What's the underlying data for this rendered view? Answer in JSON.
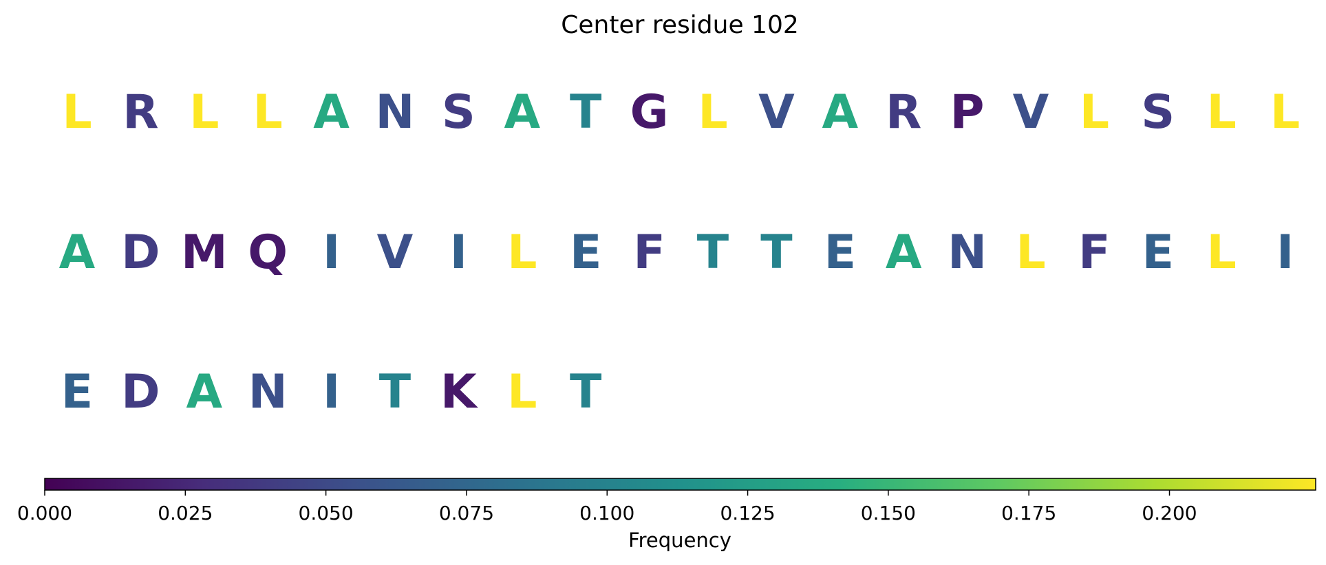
{
  "chart_data": {
    "type": "heatmap",
    "title": "Center residue 102",
    "residues": [
      {
        "letter": "L",
        "freq": 0.226
      },
      {
        "letter": "R",
        "freq": 0.04
      },
      {
        "letter": "L",
        "freq": 0.226
      },
      {
        "letter": "L",
        "freq": 0.226
      },
      {
        "letter": "A",
        "freq": 0.136
      },
      {
        "letter": "N",
        "freq": 0.055
      },
      {
        "letter": "S",
        "freq": 0.04
      },
      {
        "letter": "A",
        "freq": 0.136
      },
      {
        "letter": "T",
        "freq": 0.1
      },
      {
        "letter": "G",
        "freq": 0.015
      },
      {
        "letter": "L",
        "freq": 0.226
      },
      {
        "letter": "V",
        "freq": 0.055
      },
      {
        "letter": "A",
        "freq": 0.136
      },
      {
        "letter": "R",
        "freq": 0.04
      },
      {
        "letter": "P",
        "freq": 0.015
      },
      {
        "letter": "V",
        "freq": 0.055
      },
      {
        "letter": "L",
        "freq": 0.226
      },
      {
        "letter": "S",
        "freq": 0.04
      },
      {
        "letter": "L",
        "freq": 0.226
      },
      {
        "letter": "L",
        "freq": 0.226
      },
      {
        "letter": "A",
        "freq": 0.136
      },
      {
        "letter": "D",
        "freq": 0.04
      },
      {
        "letter": "M",
        "freq": 0.015
      },
      {
        "letter": "Q",
        "freq": 0.015
      },
      {
        "letter": "I",
        "freq": 0.07
      },
      {
        "letter": "V",
        "freq": 0.055
      },
      {
        "letter": "I",
        "freq": 0.07
      },
      {
        "letter": "L",
        "freq": 0.226
      },
      {
        "letter": "E",
        "freq": 0.07
      },
      {
        "letter": "F",
        "freq": 0.04
      },
      {
        "letter": "T",
        "freq": 0.1
      },
      {
        "letter": "T",
        "freq": 0.1
      },
      {
        "letter": "E",
        "freq": 0.07
      },
      {
        "letter": "A",
        "freq": 0.136
      },
      {
        "letter": "N",
        "freq": 0.055
      },
      {
        "letter": "L",
        "freq": 0.226
      },
      {
        "letter": "F",
        "freq": 0.04
      },
      {
        "letter": "E",
        "freq": 0.07
      },
      {
        "letter": "L",
        "freq": 0.226
      },
      {
        "letter": "I",
        "freq": 0.07
      },
      {
        "letter": "E",
        "freq": 0.07
      },
      {
        "letter": "D",
        "freq": 0.04
      },
      {
        "letter": "A",
        "freq": 0.136
      },
      {
        "letter": "N",
        "freq": 0.055
      },
      {
        "letter": "I",
        "freq": 0.07
      },
      {
        "letter": "T",
        "freq": 0.1
      },
      {
        "letter": "K",
        "freq": 0.015
      },
      {
        "letter": "L",
        "freq": 0.226
      },
      {
        "letter": "T",
        "freq": 0.1
      }
    ],
    "colorbar": {
      "label": "Frequency",
      "colormap": "viridis",
      "range": [
        0,
        0.226
      ],
      "ticks": [
        0.0,
        0.025,
        0.05,
        0.075,
        0.1,
        0.125,
        0.15,
        0.175,
        0.2
      ],
      "tick_labels": [
        "0.000",
        "0.025",
        "0.050",
        "0.075",
        "0.100",
        "0.125",
        "0.150",
        "0.175",
        "0.200"
      ]
    }
  }
}
